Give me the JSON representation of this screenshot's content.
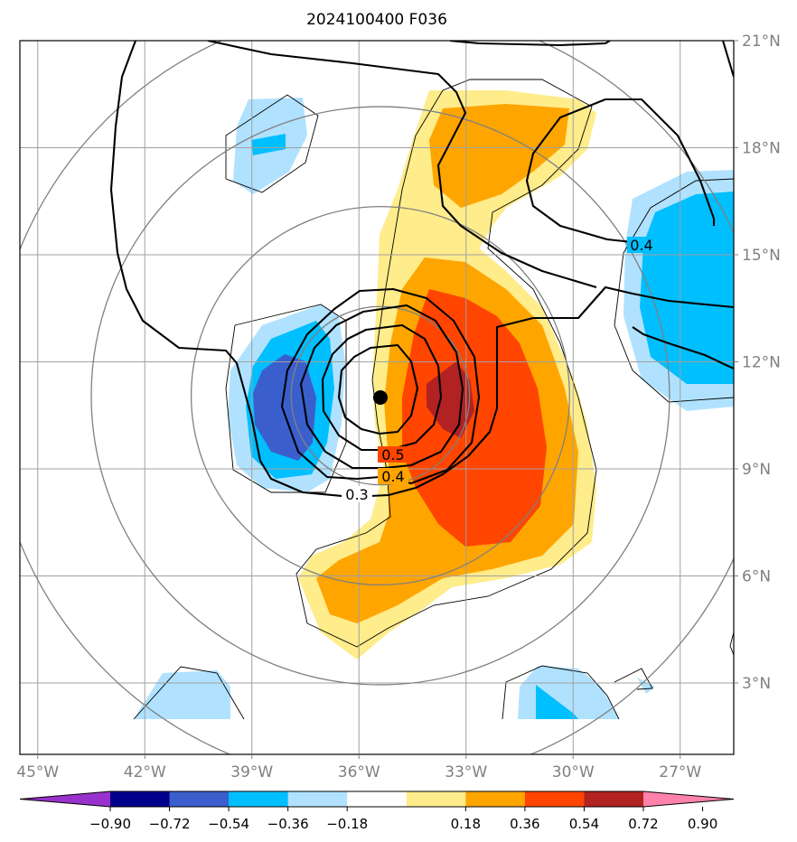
{
  "chart_data": {
    "type": "map_contour",
    "title": "2024100400 F036",
    "x_ticks": [
      "45°W",
      "42°W",
      "39°W",
      "36°W",
      "33°W",
      "30°W",
      "27°W"
    ],
    "y_ticks": [
      "21°N",
      "18°N",
      "15°N",
      "12°N",
      "9°N",
      "6°N",
      "3°N"
    ],
    "xlim": [
      -45.5,
      -25.5
    ],
    "ylim": [
      1,
      21
    ],
    "grid": true,
    "center_marker": {
      "lon": -35.4,
      "lat": 11.0
    },
    "range_rings_deg": [
      2.5,
      5.3,
      8.1,
      10.9
    ],
    "contour_labels": [
      {
        "text": "0.5",
        "lon": -34.4,
        "lat": 9.5
      },
      {
        "text": "0.4",
        "lon": -34.4,
        "lat": 8.8
      },
      {
        "text": "0.3",
        "lon": -35.4,
        "lat": 8.3
      },
      {
        "text": "0.4",
        "lon": -26.5,
        "lat": 14.7
      }
    ],
    "colorbar": {
      "tick_labels": [
        "−0.90",
        "−0.72",
        "−0.54",
        "−0.36",
        "−0.18",
        "0.18",
        "0.36",
        "0.54",
        "0.72",
        "0.90"
      ],
      "levels": [
        -0.9,
        -0.72,
        -0.54,
        -0.36,
        -0.18,
        0.18,
        0.36,
        0.54,
        0.72,
        0.9
      ],
      "colors": [
        "#9932CC",
        "#00008B",
        "#3A5FCD",
        "#00BFFF",
        "#B0E2FF",
        "#FFFFFF",
        "#FFEC8B",
        "#FFA500",
        "#FF4500",
        "#B22222",
        "#FF82AB"
      ],
      "extend": "both"
    }
  }
}
